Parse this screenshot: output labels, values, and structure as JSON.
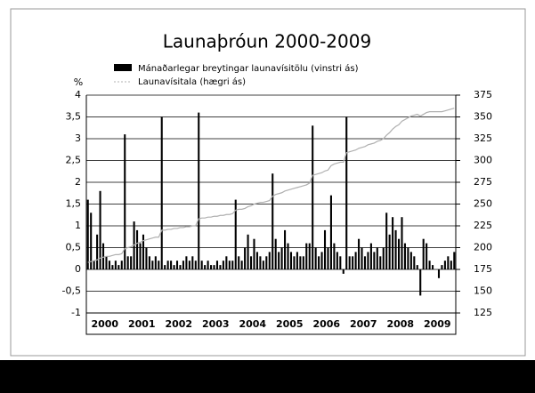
{
  "chart_data": {
    "type": "bar_line",
    "title": "Launaþróun 2000-2009",
    "ylabel": "%",
    "categories": [
      null,
      null,
      null,
      null,
      null,
      null,
      "2000",
      null,
      null,
      null,
      null,
      null,
      null,
      null,
      null,
      null,
      null,
      null,
      "2001",
      null,
      null,
      null,
      null,
      null,
      null,
      null,
      null,
      null,
      null,
      null,
      "2002",
      null,
      null,
      null,
      null,
      null,
      null,
      null,
      null,
      null,
      null,
      null,
      "2003",
      null,
      null,
      null,
      null,
      null,
      null,
      null,
      null,
      null,
      null,
      null,
      "2004",
      null,
      null,
      null,
      null,
      null,
      null,
      null,
      null,
      null,
      null,
      null,
      "2005",
      null,
      null,
      null,
      null,
      null,
      null,
      null,
      null,
      null,
      null,
      null,
      "2006",
      null,
      null,
      null,
      null,
      null,
      null,
      null,
      null,
      null,
      null,
      null,
      "2007",
      null,
      null,
      null,
      null,
      null,
      null,
      null,
      null,
      null,
      null,
      null,
      "2008",
      null,
      null,
      null,
      null,
      null,
      null,
      null,
      null,
      null,
      null,
      null,
      "2009",
      null,
      null,
      null,
      null,
      null
    ],
    "series": [
      {
        "name": "Mánaðarlegar breytingar launavísitölu (vinstri ás)",
        "color": "#000000",
        "kind": "bar",
        "values": [
          1.6,
          1.3,
          0.2,
          0.8,
          1.8,
          0.6,
          0.3,
          0.2,
          0.1,
          0.2,
          0.1,
          0.2,
          3.1,
          0.3,
          0.3,
          1.1,
          0.9,
          0.6,
          0.8,
          0.5,
          0.3,
          0.2,
          0.3,
          0.2,
          3.5,
          0.1,
          0.2,
          0.2,
          0.1,
          0.2,
          0.1,
          0.2,
          0.3,
          0.2,
          0.3,
          0.2,
          3.6,
          0.2,
          0.1,
          0.2,
          0.1,
          0.1,
          0.2,
          0.1,
          0.2,
          0.3,
          0.2,
          0.2,
          1.6,
          0.3,
          0.2,
          0.5,
          0.8,
          0.3,
          0.7,
          0.4,
          0.3,
          0.2,
          0.3,
          0.4,
          2.2,
          0.7,
          0.4,
          0.5,
          0.9,
          0.6,
          0.4,
          0.3,
          0.4,
          0.3,
          0.3,
          0.6,
          0.6,
          3.3,
          0.5,
          0.3,
          0.4,
          0.9,
          0.5,
          1.7,
          0.6,
          0.4,
          0.3,
          -0.1,
          3.5,
          0.3,
          0.3,
          0.4,
          0.7,
          0.5,
          0.3,
          0.4,
          0.6,
          0.4,
          0.5,
          0.3,
          0.5,
          1.3,
          0.8,
          1.2,
          0.9,
          0.7,
          1.2,
          0.6,
          0.5,
          0.4,
          0.3,
          0.1,
          -0.6,
          0.7,
          0.6,
          0.2,
          0.1,
          0.0,
          -0.2,
          0.1,
          0.2,
          0.3,
          0.2,
          0.4
        ]
      },
      {
        "name": "Launavísitala (hægri ás)",
        "color": "#b0b0b0",
        "kind": "line",
        "axis": "y2",
        "values": [
          183,
          184,
          185,
          186,
          188,
          189,
          190,
          190,
          191,
          192,
          192,
          193,
          199,
          200,
          201,
          203,
          205,
          206,
          208,
          209,
          210,
          211,
          212,
          212,
          220,
          220,
          221,
          221,
          222,
          222,
          223,
          223,
          224,
          224,
          225,
          225,
          233,
          234,
          234,
          235,
          235,
          236,
          236,
          237,
          237,
          238,
          238,
          239,
          243,
          244,
          244,
          245,
          247,
          248,
          250,
          251,
          252,
          252,
          253,
          254,
          259,
          261,
          262,
          263,
          265,
          266,
          267,
          268,
          269,
          270,
          271,
          272,
          274,
          283,
          284,
          285,
          286,
          288,
          289,
          294,
          296,
          297,
          298,
          298,
          309,
          310,
          311,
          312,
          314,
          315,
          316,
          318,
          319,
          320,
          322,
          323,
          325,
          329,
          332,
          336,
          339,
          341,
          345,
          347,
          349,
          351,
          352,
          353,
          351,
          353,
          355,
          356,
          356,
          356,
          356,
          356,
          357,
          358,
          359,
          360
        ]
      }
    ],
    "ylim": [
      -1,
      4
    ],
    "yticks": [
      -1,
      {
        "value": -0.5,
        "label": "-0,5"
      },
      0,
      {
        "value": 0.5,
        "label": "0,5"
      },
      1,
      {
        "value": 1.5,
        "label": "1,5"
      },
      2,
      {
        "value": 2.5,
        "label": "2,5"
      },
      3,
      {
        "value": 3.5,
        "label": "3,5"
      },
      4
    ],
    "y2lim": [
      125,
      375
    ],
    "y2ticks": [
      125,
      150,
      175,
      200,
      225,
      250,
      275,
      300,
      325,
      350,
      375
    ],
    "grid": true
  }
}
